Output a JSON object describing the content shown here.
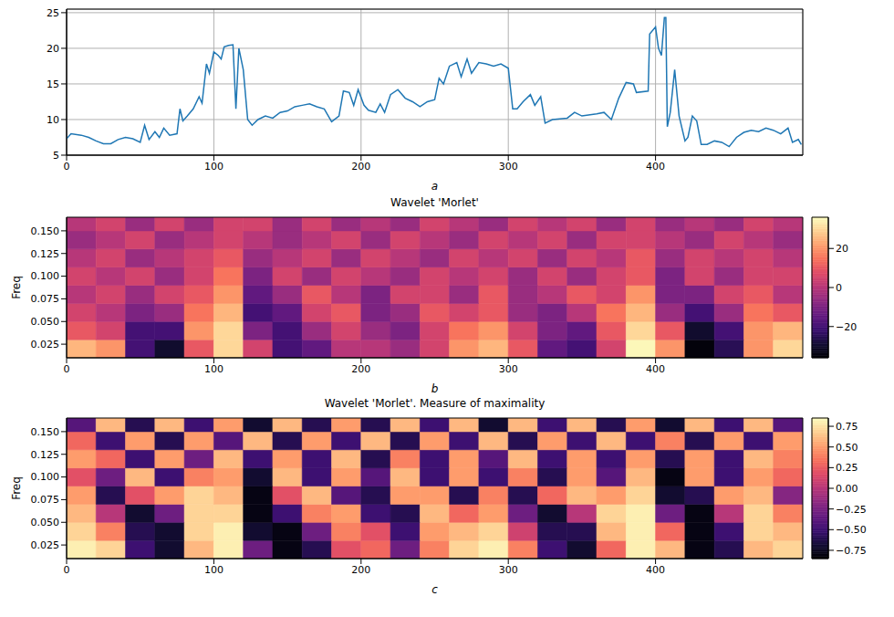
{
  "chart_data": [
    {
      "type": "line",
      "xlabel": "a",
      "color": "#1f77b4",
      "grid": true,
      "xlim": [
        0,
        500
      ],
      "ylim": [
        5,
        25.5
      ],
      "xticks": [
        0,
        100,
        200,
        300,
        400
      ],
      "yticks": [
        5,
        10,
        15,
        20,
        25
      ],
      "x": [
        0,
        3,
        10,
        15,
        20,
        25,
        30,
        35,
        40,
        45,
        50,
        53,
        56,
        60,
        63,
        66,
        70,
        75,
        77,
        79,
        82,
        86,
        90,
        92,
        95,
        97,
        100,
        103,
        105,
        107,
        110,
        113,
        115,
        117,
        120,
        123,
        126,
        130,
        135,
        140,
        145,
        150,
        155,
        160,
        165,
        170,
        175,
        180,
        185,
        188,
        192,
        195,
        198,
        202,
        205,
        210,
        213,
        216,
        220,
        225,
        230,
        235,
        240,
        245,
        250,
        253,
        256,
        260,
        265,
        268,
        272,
        275,
        280,
        285,
        290,
        295,
        300,
        303,
        306,
        310,
        315,
        318,
        322,
        325,
        330,
        340,
        345,
        350,
        360,
        365,
        370,
        375,
        380,
        385,
        387,
        395,
        396,
        400,
        402,
        404,
        406,
        407,
        408,
        410,
        413,
        416,
        420,
        422,
        425,
        428,
        431,
        435,
        440,
        445,
        450,
        455,
        460,
        465,
        470,
        475,
        480,
        485,
        490,
        493,
        497,
        499
      ],
      "values": [
        7.3,
        8.0,
        7.8,
        7.5,
        7.0,
        6.6,
        6.6,
        7.2,
        7.5,
        7.3,
        6.8,
        9.2,
        7.2,
        8.3,
        7.5,
        8.8,
        7.8,
        8.0,
        11.5,
        9.8,
        10.5,
        11.5,
        13.2,
        12.3,
        17.8,
        16.5,
        19.5,
        19.0,
        18.5,
        20.2,
        20.4,
        20.5,
        11.5,
        20.0,
        17.0,
        10.0,
        9.2,
        10.0,
        10.5,
        10.2,
        11.0,
        11.2,
        11.8,
        12.0,
        12.2,
        11.8,
        11.5,
        9.7,
        10.5,
        14.0,
        13.8,
        12.0,
        14.2,
        12.0,
        11.3,
        11.0,
        12.2,
        11.0,
        13.5,
        14.2,
        13.0,
        12.5,
        11.8,
        12.5,
        12.8,
        15.8,
        15.0,
        17.5,
        18.0,
        16.0,
        18.5,
        16.5,
        18.0,
        17.8,
        17.5,
        17.8,
        17.2,
        11.5,
        11.5,
        12.5,
        13.5,
        12.0,
        13.2,
        9.5,
        10.0,
        10.2,
        11.0,
        10.5,
        10.8,
        11.0,
        10.0,
        13.0,
        15.2,
        15.0,
        13.8,
        14.0,
        22.0,
        23.0,
        20.0,
        19.0,
        24.3,
        24.3,
        9.0,
        11.0,
        17.0,
        10.5,
        7.0,
        7.5,
        10.5,
        9.8,
        6.5,
        6.5,
        7.0,
        6.8,
        6.2,
        7.5,
        8.2,
        8.5,
        8.3,
        8.8,
        8.5,
        8.0,
        8.8,
        6.8,
        7.2,
        6.5
      ]
    },
    {
      "type": "heatmap",
      "title": "Wavelet 'Morlet'",
      "xlabel": "b",
      "ylabel": "Freq",
      "xlim": [
        0,
        500
      ],
      "ylim": [
        0.01,
        0.165
      ],
      "xticks": [
        0,
        100,
        200,
        300,
        400
      ],
      "yticks": [
        0.025,
        {
          "value": 0.05,
          "label": "0.050"
        },
        0.075,
        {
          "value": 0.1,
          "label": "0.100"
        },
        0.125,
        {
          "value": 0.15,
          "label": "0.150"
        }
      ],
      "x_bins": [
        0,
        20,
        40,
        60,
        80,
        100,
        120,
        140,
        160,
        180,
        200,
        220,
        240,
        260,
        280,
        300,
        320,
        340,
        360,
        380,
        400,
        420,
        440,
        460,
        480,
        500
      ],
      "y_bins": [
        0.01,
        0.03,
        0.05,
        0.07,
        0.09,
        0.11,
        0.13,
        0.15,
        0.165
      ],
      "cells": [
        [
          25,
          20,
          -20,
          -30,
          10,
          30,
          5,
          -20,
          -15,
          0,
          0,
          -5,
          5,
          20,
          25,
          10,
          -15,
          -20,
          5,
          35,
          20,
          -35,
          -25,
          20,
          30
        ],
        [
          10,
          5,
          -20,
          -20,
          20,
          30,
          -10,
          -20,
          -5,
          5,
          -5,
          -10,
          5,
          15,
          20,
          5,
          -10,
          -15,
          10,
          30,
          10,
          -30,
          -20,
          20,
          25
        ],
        [
          5,
          0,
          -10,
          -5,
          15,
          25,
          -20,
          -15,
          5,
          10,
          -10,
          -5,
          10,
          5,
          10,
          -5,
          -10,
          0,
          15,
          25,
          -5,
          -20,
          -5,
          15,
          10
        ],
        [
          0,
          5,
          -5,
          5,
          10,
          20,
          -15,
          -5,
          10,
          0,
          -10,
          5,
          5,
          -5,
          10,
          -5,
          0,
          10,
          5,
          20,
          -10,
          -10,
          5,
          10,
          0
        ],
        [
          5,
          0,
          5,
          -5,
          5,
          15,
          -10,
          5,
          -5,
          5,
          0,
          -5,
          5,
          0,
          5,
          -5,
          5,
          -5,
          5,
          10,
          -10,
          5,
          -5,
          5,
          5
        ],
        [
          0,
          5,
          -5,
          0,
          5,
          10,
          -5,
          0,
          5,
          -5,
          5,
          0,
          -5,
          5,
          0,
          5,
          -5,
          5,
          0,
          10,
          -5,
          5,
          0,
          5,
          0
        ],
        [
          -5,
          0,
          5,
          -5,
          0,
          5,
          0,
          -5,
          0,
          5,
          -5,
          5,
          0,
          -5,
          5,
          0,
          5,
          -5,
          5,
          5,
          0,
          -5,
          5,
          0,
          -5
        ],
        [
          0,
          5,
          -5,
          5,
          -5,
          5,
          5,
          -5,
          5,
          -5,
          0,
          -5,
          5,
          0,
          -5,
          5,
          0,
          5,
          -5,
          5,
          -5,
          0,
          -5,
          5,
          0
        ]
      ],
      "colorbar_lim": [
        -36,
        36
      ],
      "colorbar_ticks": [
        {
          "value": -20,
          "label": "−20"
        },
        0,
        20
      ]
    },
    {
      "type": "heatmap",
      "title": "Wavelet 'Morlet'. Measure of maximality",
      "xlabel": "c",
      "ylabel": "Freq",
      "xlim": [
        0,
        500
      ],
      "ylim": [
        0.01,
        0.165
      ],
      "xticks": [
        0,
        100,
        200,
        300,
        400
      ],
      "yticks": [
        0.025,
        {
          "value": 0.05,
          "label": "0.050"
        },
        0.075,
        {
          "value": 0.1,
          "label": "0.100"
        },
        0.125,
        {
          "value": 0.15,
          "label": "0.150"
        }
      ],
      "x_bins": [
        0,
        20,
        40,
        60,
        80,
        100,
        120,
        140,
        160,
        180,
        200,
        220,
        240,
        260,
        280,
        300,
        320,
        340,
        360,
        380,
        400,
        420,
        440,
        460,
        480,
        500
      ],
      "y_bins": [
        0.01,
        0.03,
        0.05,
        0.07,
        0.09,
        0.11,
        0.13,
        0.15,
        0.165
      ],
      "cells": [
        [
          0.8,
          0.7,
          -0.5,
          -0.7,
          0.6,
          0.8,
          -0.3,
          -0.8,
          -0.6,
          0.2,
          0.3,
          -0.3,
          0.4,
          0.7,
          0.8,
          0.4,
          -0.5,
          -0.7,
          0.3,
          0.8,
          0.6,
          -0.8,
          -0.6,
          0.6,
          0.7
        ],
        [
          0.7,
          0.4,
          -0.6,
          -0.7,
          0.7,
          0.8,
          -0.7,
          -0.8,
          -0.3,
          0.4,
          0.2,
          -0.5,
          0.5,
          0.6,
          0.7,
          0.1,
          -0.6,
          -0.6,
          0.6,
          0.8,
          0.3,
          -0.8,
          -0.5,
          0.7,
          0.6
        ],
        [
          0.6,
          0.0,
          -0.7,
          -0.3,
          0.7,
          0.7,
          -0.8,
          -0.5,
          0.4,
          0.5,
          -0.5,
          -0.6,
          0.6,
          0.3,
          0.5,
          -0.3,
          -0.7,
          0.0,
          0.7,
          0.8,
          -0.3,
          -0.8,
          0.0,
          0.7,
          0.4
        ],
        [
          0.5,
          -0.6,
          0.2,
          0.5,
          0.7,
          0.6,
          -0.8,
          0.2,
          0.6,
          -0.4,
          -0.6,
          0.5,
          0.5,
          -0.6,
          0.4,
          -0.6,
          0.3,
          0.6,
          0.5,
          0.7,
          -0.7,
          -0.6,
          0.5,
          0.6,
          -0.2
        ],
        [
          0.2,
          -0.3,
          0.6,
          -0.5,
          0.4,
          0.5,
          -0.7,
          0.6,
          -0.5,
          0.5,
          -0.4,
          0.6,
          -0.5,
          0.5,
          -0.5,
          0.4,
          -0.6,
          0.5,
          -0.4,
          0.6,
          -0.8,
          0.5,
          -0.5,
          0.5,
          0.3
        ],
        [
          0.5,
          0.3,
          -0.5,
          0.5,
          -0.3,
          0.6,
          -0.5,
          0.5,
          -0.5,
          0.6,
          -0.6,
          0.4,
          -0.5,
          0.5,
          -0.4,
          0.6,
          -0.5,
          0.5,
          -0.5,
          0.5,
          -0.6,
          0.5,
          -0.5,
          0.6,
          0.4
        ],
        [
          0.3,
          -0.5,
          0.5,
          -0.6,
          0.5,
          -0.4,
          0.6,
          -0.6,
          0.5,
          -0.5,
          0.6,
          -0.6,
          0.5,
          -0.5,
          0.6,
          -0.6,
          0.5,
          -0.5,
          0.6,
          -0.5,
          0.4,
          -0.6,
          0.5,
          -0.5,
          0.5
        ],
        [
          -0.4,
          0.6,
          -0.6,
          0.6,
          -0.5,
          0.5,
          -0.7,
          0.6,
          -0.6,
          0.5,
          -0.6,
          0.6,
          -0.5,
          0.6,
          -0.7,
          0.6,
          -0.5,
          0.6,
          -0.6,
          0.5,
          -0.7,
          0.6,
          -0.5,
          0.6,
          -0.4
        ]
      ],
      "colorbar_lim": [
        -0.85,
        0.85
      ],
      "colorbar_ticks": [
        {
          "value": -0.75,
          "label": "−0.75"
        },
        {
          "value": -0.5,
          "label": "−0.50"
        },
        {
          "value": -0.25,
          "label": "−0.25"
        },
        {
          "value": 0,
          "label": "0.00"
        },
        0.25,
        {
          "value": 0.5,
          "label": "0.50"
        },
        0.75
      ]
    }
  ]
}
